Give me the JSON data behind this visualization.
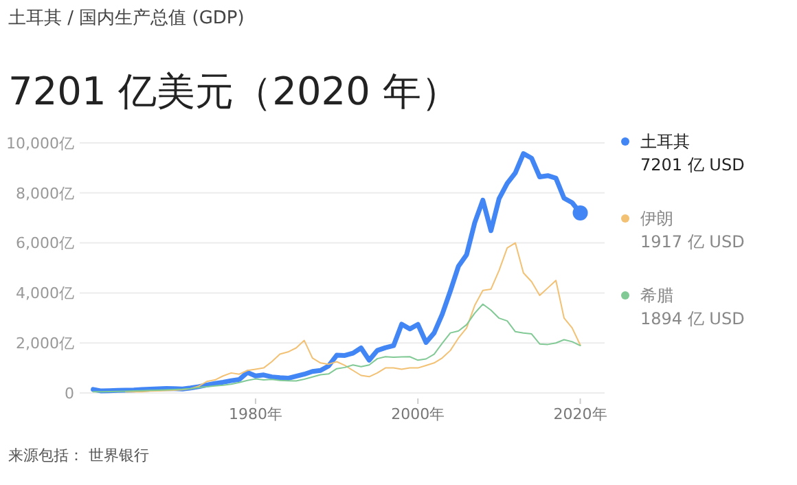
{
  "chart_data": {
    "type": "line",
    "subtitle": "土耳其 / 国内生产总值 (GDP)",
    "title": "7201 亿美元（2020 年）",
    "x": [
      1960,
      1961,
      1962,
      1963,
      1964,
      1965,
      1966,
      1967,
      1968,
      1969,
      1970,
      1971,
      1972,
      1973,
      1974,
      1975,
      1976,
      1977,
      1978,
      1979,
      1980,
      1981,
      1982,
      1983,
      1984,
      1985,
      1986,
      1987,
      1988,
      1989,
      1990,
      1991,
      1992,
      1993,
      1994,
      1995,
      1996,
      1997,
      1998,
      1999,
      2000,
      2001,
      2002,
      2003,
      2004,
      2005,
      2006,
      2007,
      2008,
      2009,
      2010,
      2011,
      2012,
      2013,
      2014,
      2015,
      2016,
      2017,
      2018,
      2019,
      2020
    ],
    "series": [
      {
        "name": "土耳其",
        "color": "#4285f4",
        "values": [
          140,
          80,
          90,
          100,
          110,
          115,
          135,
          150,
          165,
          180,
          170,
          160,
          200,
          250,
          320,
          380,
          430,
          490,
          540,
          820,
          680,
          720,
          640,
          610,
          590,
          670,
          750,
          860,
          900,
          1080,
          1510,
          1500,
          1590,
          1800,
          1310,
          1700,
          1810,
          1890,
          2750,
          2560,
          2740,
          2020,
          2400,
          3150,
          4080,
          5070,
          5530,
          6810,
          7710,
          6490,
          7770,
          8380,
          8800,
          9570,
          9390,
          8640,
          8690,
          8590,
          7790,
          7610,
          7201
        ]
      },
      {
        "name": "伊朗",
        "color": "#f2c174",
        "values": [
          null,
          null,
          null,
          null,
          50,
          50,
          50,
          75,
          85,
          95,
          110,
          130,
          170,
          270,
          460,
          520,
          680,
          800,
          750,
          900,
          950,
          1000,
          1250,
          1550,
          1640,
          1800,
          2100,
          1400,
          1200,
          1150,
          1250,
          1100,
          900,
          700,
          650,
          800,
          1000,
          1000,
          950,
          1000,
          1000,
          1100,
          1200,
          1400,
          1700,
          2200,
          2600,
          3500,
          4100,
          4150,
          4900,
          5800,
          6000,
          4800,
          4450,
          3900,
          4200,
          4500,
          3000,
          2600,
          1917
        ]
      },
      {
        "name": "希腊",
        "color": "#81c995",
        "values": [
          45,
          50,
          55,
          60,
          70,
          80,
          90,
          100,
          110,
          125,
          140,
          150,
          170,
          220,
          250,
          280,
          310,
          350,
          420,
          500,
          560,
          520,
          540,
          500,
          490,
          480,
          550,
          640,
          730,
          760,
          970,
          1020,
          1120,
          1050,
          1120,
          1370,
          1450,
          1430,
          1440,
          1450,
          1310,
          1360,
          1550,
          1990,
          2400,
          2480,
          2730,
          3190,
          3550,
          3310,
          2990,
          2880,
          2450,
          2400,
          2360,
          1960,
          1940,
          2000,
          2130,
          2050,
          1894
        ]
      }
    ],
    "xlim": [
      1958,
      2023
    ],
    "ylim": [
      0,
      10000
    ],
    "xticks": [
      {
        "value": 1980,
        "label": "1980年"
      },
      {
        "value": 2000,
        "label": "2000年"
      },
      {
        "value": 2020,
        "label": "2020年"
      }
    ],
    "yticks": [
      {
        "value": 0,
        "label": "0"
      },
      {
        "value": 2000,
        "label": "2,000亿"
      },
      {
        "value": 4000,
        "label": "4,000亿"
      },
      {
        "value": 6000,
        "label": "6,000亿"
      },
      {
        "value": 8000,
        "label": "8,000亿"
      },
      {
        "value": 10000,
        "label": "10,000亿"
      }
    ],
    "grid": "y",
    "legend": "right",
    "marker": "none",
    "line_style": "solid",
    "annotations": [
      "7201 亿 USD",
      "1917 亿 USD",
      "1894 亿 USD",
      "来源包括： 世界银行"
    ]
  }
}
